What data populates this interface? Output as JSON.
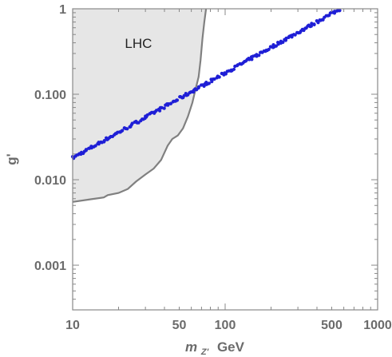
{
  "chart_data": {
    "type": "scatter",
    "title": "",
    "xlabel": "m_Z' GeV",
    "xlabel_parts": {
      "italic": "m",
      "sub": "Z'",
      "unit": "GeV"
    },
    "ylabel": "g'",
    "xscale": "log",
    "yscale": "log",
    "xlim": [
      10,
      1000
    ],
    "ylim": [
      0.0003,
      1
    ],
    "x_ticks": [
      {
        "value": 10,
        "label": "10"
      },
      {
        "value": 50,
        "label": "50"
      },
      {
        "value": 100,
        "label": "100"
      },
      {
        "value": 500,
        "label": "500"
      },
      {
        "value": 1000,
        "label": "1000"
      }
    ],
    "y_ticks": [
      {
        "value": 0.001,
        "label": "0.001"
      },
      {
        "value": 0.01,
        "label": "0.010"
      },
      {
        "value": 0.1,
        "label": "0.100"
      },
      {
        "value": 1,
        "label": "1"
      }
    ],
    "grid": false,
    "region": {
      "label": "LHC",
      "label_pos": {
        "x": 22,
        "y": 0.35
      },
      "fill": "#e6e6e6",
      "stroke": "#808080",
      "boundary": [
        {
          "x": 10,
          "y": 0.0055
        },
        {
          "x": 13,
          "y": 0.0059
        },
        {
          "x": 16,
          "y": 0.0062
        },
        {
          "x": 17,
          "y": 0.0066
        },
        {
          "x": 20,
          "y": 0.007
        },
        {
          "x": 23,
          "y": 0.0078
        },
        {
          "x": 26,
          "y": 0.0095
        },
        {
          "x": 30,
          "y": 0.0115
        },
        {
          "x": 34,
          "y": 0.0135
        },
        {
          "x": 38,
          "y": 0.017
        },
        {
          "x": 42,
          "y": 0.025
        },
        {
          "x": 45,
          "y": 0.03
        },
        {
          "x": 49,
          "y": 0.033
        },
        {
          "x": 53,
          "y": 0.04
        },
        {
          "x": 57,
          "y": 0.055
        },
        {
          "x": 61,
          "y": 0.08
        },
        {
          "x": 64,
          "y": 0.115
        },
        {
          "x": 67,
          "y": 0.16
        },
        {
          "x": 69,
          "y": 0.25
        },
        {
          "x": 71,
          "y": 0.45
        },
        {
          "x": 73,
          "y": 0.7
        },
        {
          "x": 75,
          "y": 1.0
        }
      ]
    },
    "series": [
      {
        "color": "#1f1fd6",
        "x_range": [
          10,
          570
        ],
        "y_range": [
          0.018,
          1.0
        ],
        "points": 210
      }
    ]
  }
}
